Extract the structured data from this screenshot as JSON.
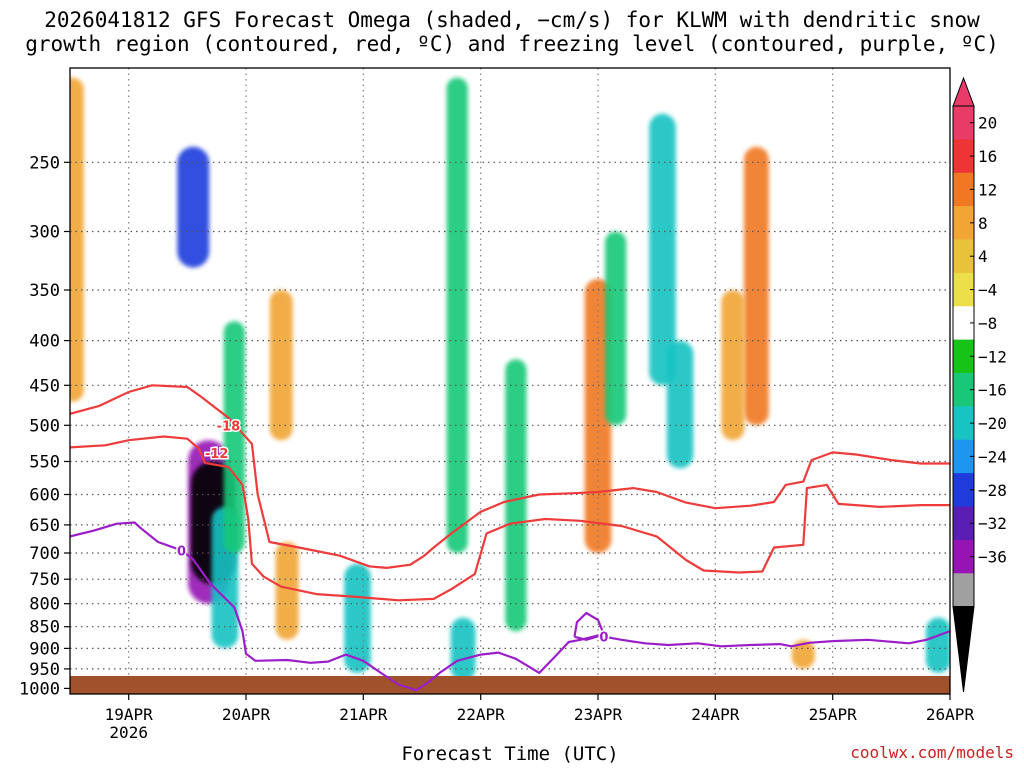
{
  "chart_data": {
    "type": "time-height cross section (shaded + contoured)",
    "title": "2026041812 GFS Forecast Omega (shaded, −cm/s) for KLWM with dendritic snow",
    "title2": "growth region (contoured, red, ºC) and freezing level (contoured, purple, ºC)",
    "xlabel": "Forecast Time (UTC)",
    "ylabel": "",
    "credit": "coolwx.com/models",
    "y_axis": {
      "unit": "hPa",
      "ticks": [
        250,
        300,
        350,
        400,
        450,
        500,
        550,
        600,
        650,
        700,
        750,
        800,
        850,
        900,
        950,
        1000
      ],
      "range": [
        1015,
        195
      ]
    },
    "x_axis": {
      "ticks": [
        "19APR",
        "20APR",
        "21APR",
        "22APR",
        "23APR",
        "24APR",
        "25APR",
        "26APR"
      ],
      "tick_days": [
        19,
        20,
        21,
        22,
        23,
        24,
        25,
        26
      ],
      "year_label": "2026",
      "range_days": [
        18.5,
        26.0
      ]
    },
    "colorbar": {
      "labels": [
        "20",
        "16",
        "12",
        "8",
        "4",
        "−4",
        "−8",
        "−12",
        "−16",
        "−20",
        "−24",
        "−28",
        "−32",
        "−36"
      ],
      "colors": [
        "#e83b68",
        "#ee3535",
        "#f07822",
        "#f0a535",
        "#e8c23a",
        "#ecdf4a",
        "#ffffff",
        "#18c318",
        "#18c878",
        "#18c3c3",
        "#1e96f0",
        "#1e3cdc",
        "#5a1eb4",
        "#9614b4",
        "#a0a0a0",
        "#000000"
      ],
      "max_arrow_color": "#e83b68",
      "min_arrow_color": "#000000"
    },
    "omega_features": [
      {
        "day": 18.52,
        "p_top": 200,
        "p_bot": 470,
        "value": 10
      },
      {
        "day": 19.55,
        "p_top": 240,
        "p_bot": 330,
        "value": -20
      },
      {
        "day": 19.68,
        "p_top": 520,
        "p_bot": 800,
        "value": -30
      },
      {
        "day": 19.72,
        "p_top": 550,
        "p_bot": 760,
        "value": -36
      },
      {
        "day": 19.82,
        "p_top": 620,
        "p_bot": 900,
        "value": -14
      },
      {
        "day": 19.9,
        "p_top": 380,
        "p_bot": 700,
        "value": -8
      },
      {
        "day": 20.3,
        "p_top": 350,
        "p_bot": 520,
        "value": 10
      },
      {
        "day": 20.35,
        "p_top": 680,
        "p_bot": 880,
        "value": 10
      },
      {
        "day": 20.95,
        "p_top": 720,
        "p_bot": 960,
        "value": -14
      },
      {
        "day": 21.8,
        "p_top": 200,
        "p_bot": 700,
        "value": -8
      },
      {
        "day": 21.85,
        "p_top": 830,
        "p_bot": 980,
        "value": -12
      },
      {
        "day": 22.3,
        "p_top": 420,
        "p_bot": 860,
        "value": -8
      },
      {
        "day": 23.0,
        "p_top": 340,
        "p_bot": 700,
        "value": 14
      },
      {
        "day": 23.15,
        "p_top": 300,
        "p_bot": 500,
        "value": -8
      },
      {
        "day": 23.55,
        "p_top": 220,
        "p_bot": 450,
        "value": -14
      },
      {
        "day": 23.7,
        "p_top": 400,
        "p_bot": 560,
        "value": -14
      },
      {
        "day": 24.35,
        "p_top": 240,
        "p_bot": 500,
        "value": 12
      },
      {
        "day": 24.15,
        "p_top": 350,
        "p_bot": 520,
        "value": 10
      },
      {
        "day": 24.75,
        "p_top": 880,
        "p_bot": 950,
        "value": 10
      },
      {
        "day": 25.9,
        "p_top": 830,
        "p_bot": 960,
        "value": -12
      }
    ],
    "contours": [
      {
        "label": "-18",
        "color": "#ee3b3b",
        "label_at": [
          19.85,
          500
        ],
        "points": [
          [
            18.5,
            485
          ],
          [
            18.75,
            475
          ],
          [
            19.0,
            458
          ],
          [
            19.2,
            450
          ],
          [
            19.5,
            452
          ],
          [
            19.6,
            462
          ],
          [
            19.85,
            490
          ],
          [
            20.05,
            525
          ],
          [
            20.1,
            600
          ],
          [
            20.2,
            680
          ],
          [
            20.45,
            690
          ],
          [
            20.8,
            705
          ],
          [
            21.05,
            725
          ],
          [
            21.2,
            728
          ],
          [
            21.4,
            722
          ],
          [
            21.52,
            705
          ],
          [
            21.6,
            690
          ],
          [
            21.75,
            665
          ],
          [
            22.0,
            628
          ],
          [
            22.2,
            612
          ],
          [
            22.5,
            600
          ],
          [
            22.8,
            598
          ],
          [
            23.0,
            596
          ],
          [
            23.3,
            590
          ],
          [
            23.5,
            596
          ],
          [
            23.75,
            613
          ],
          [
            24.0,
            622
          ],
          [
            24.3,
            618
          ],
          [
            24.5,
            612
          ],
          [
            24.6,
            585
          ],
          [
            24.75,
            580
          ],
          [
            24.82,
            548
          ],
          [
            25.0,
            537
          ],
          [
            25.2,
            540
          ],
          [
            25.5,
            548
          ],
          [
            25.75,
            553
          ],
          [
            26.0,
            553
          ]
        ]
      },
      {
        "label": "-12",
        "color": "#ee3b3b",
        "label_at": [
          19.75,
          538
        ],
        "points": [
          [
            18.5,
            530
          ],
          [
            18.8,
            527
          ],
          [
            19.0,
            520
          ],
          [
            19.3,
            515
          ],
          [
            19.5,
            518
          ],
          [
            19.6,
            532
          ],
          [
            19.65,
            552
          ],
          [
            19.85,
            558
          ],
          [
            19.97,
            585
          ],
          [
            20.02,
            640
          ],
          [
            20.05,
            720
          ],
          [
            20.15,
            745
          ],
          [
            20.3,
            765
          ],
          [
            20.6,
            780
          ],
          [
            20.9,
            785
          ],
          [
            21.3,
            793
          ],
          [
            21.6,
            790
          ],
          [
            21.75,
            770
          ],
          [
            21.95,
            740
          ],
          [
            22.05,
            665
          ],
          [
            22.25,
            648
          ],
          [
            22.55,
            640
          ],
          [
            22.85,
            643
          ],
          [
            23.2,
            652
          ],
          [
            23.5,
            670
          ],
          [
            23.75,
            713
          ],
          [
            23.9,
            733
          ],
          [
            24.2,
            737
          ],
          [
            24.4,
            735
          ],
          [
            24.5,
            690
          ],
          [
            24.75,
            685
          ],
          [
            24.78,
            590
          ],
          [
            24.95,
            585
          ],
          [
            25.05,
            615
          ],
          [
            25.4,
            620
          ],
          [
            25.75,
            617
          ],
          [
            26.0,
            617
          ]
        ]
      },
      {
        "label": "0",
        "color": "#9b1ec8",
        "label_at": [
          19.45,
          695
        ],
        "points": [
          [
            18.5,
            670
          ],
          [
            18.7,
            660
          ],
          [
            18.9,
            648
          ],
          [
            19.05,
            646
          ],
          [
            19.1,
            655
          ],
          [
            19.25,
            680
          ],
          [
            19.45,
            695
          ],
          [
            19.55,
            712
          ],
          [
            19.7,
            760
          ],
          [
            19.9,
            808
          ],
          [
            19.97,
            860
          ],
          [
            20.0,
            913
          ],
          [
            20.08,
            930
          ],
          [
            20.35,
            928
          ],
          [
            20.55,
            935
          ],
          [
            20.7,
            932
          ],
          [
            20.85,
            915
          ],
          [
            21.0,
            930
          ],
          [
            21.15,
            960
          ],
          [
            21.3,
            990
          ],
          [
            21.45,
            1005
          ],
          [
            21.55,
            985
          ],
          [
            21.65,
            960
          ],
          [
            21.8,
            930
          ],
          [
            22.0,
            915
          ],
          [
            22.15,
            910
          ],
          [
            22.3,
            925
          ],
          [
            22.5,
            960
          ],
          [
            22.65,
            915
          ],
          [
            22.75,
            885
          ],
          [
            22.85,
            880
          ],
          [
            23.0,
            870
          ],
          [
            23.2,
            880
          ],
          [
            23.4,
            888
          ],
          [
            23.6,
            892
          ],
          [
            23.85,
            888
          ],
          [
            24.05,
            895
          ],
          [
            24.3,
            892
          ],
          [
            24.55,
            890
          ],
          [
            24.65,
            895
          ],
          [
            24.8,
            887
          ],
          [
            25.0,
            883
          ],
          [
            25.3,
            880
          ],
          [
            25.65,
            888
          ],
          [
            25.8,
            880
          ],
          [
            25.9,
            870
          ],
          [
            26.0,
            860
          ]
        ]
      }
    ],
    "freezing_loop": {
      "label": "0",
      "label_at": [
        23.05,
        872
      ],
      "points": [
        [
          22.8,
          873
        ],
        [
          22.82,
          840
        ],
        [
          22.9,
          820
        ],
        [
          23.0,
          835
        ],
        [
          23.05,
          868
        ],
        [
          22.9,
          880
        ],
        [
          22.8,
          873
        ]
      ]
    }
  }
}
